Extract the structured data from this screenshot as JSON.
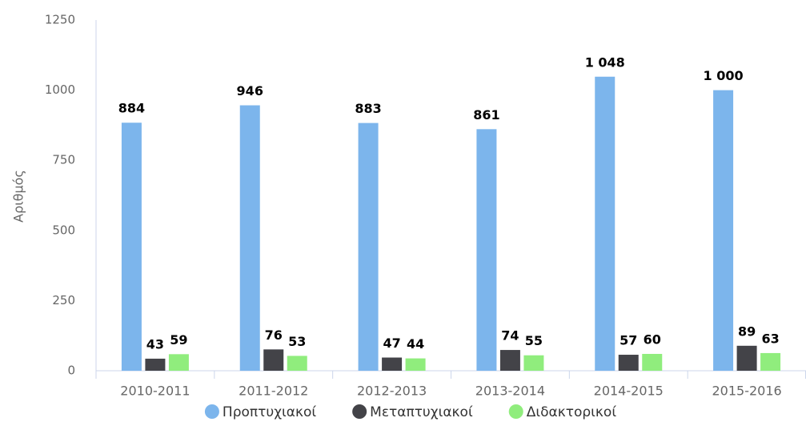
{
  "chart_data": {
    "type": "bar",
    "y_axis_label": "Αριθμός",
    "categories": [
      "2010-2011",
      "2011-2012",
      "2012-2013",
      "2013-2014",
      "2014-2015",
      "2015-2016"
    ],
    "series": [
      {
        "name": "Προπτυχιακοί",
        "color": "#7cb5ec",
        "values": [
          884,
          946,
          883,
          861,
          1048,
          1000
        ],
        "value_labels": [
          "884",
          "946",
          "883",
          "861",
          "1 048",
          "1 000"
        ]
      },
      {
        "name": "Μεταπτυχιακοί",
        "color": "#434348",
        "values": [
          43,
          76,
          47,
          74,
          57,
          89
        ]
      },
      {
        "name": "Διδακτορικοί",
        "color": "#90ed7d",
        "values": [
          59,
          53,
          44,
          55,
          60,
          63
        ]
      }
    ],
    "ylim": [
      0,
      1250
    ],
    "yticks": [
      0,
      250,
      500,
      750,
      1000,
      1250
    ],
    "grid": false
  }
}
